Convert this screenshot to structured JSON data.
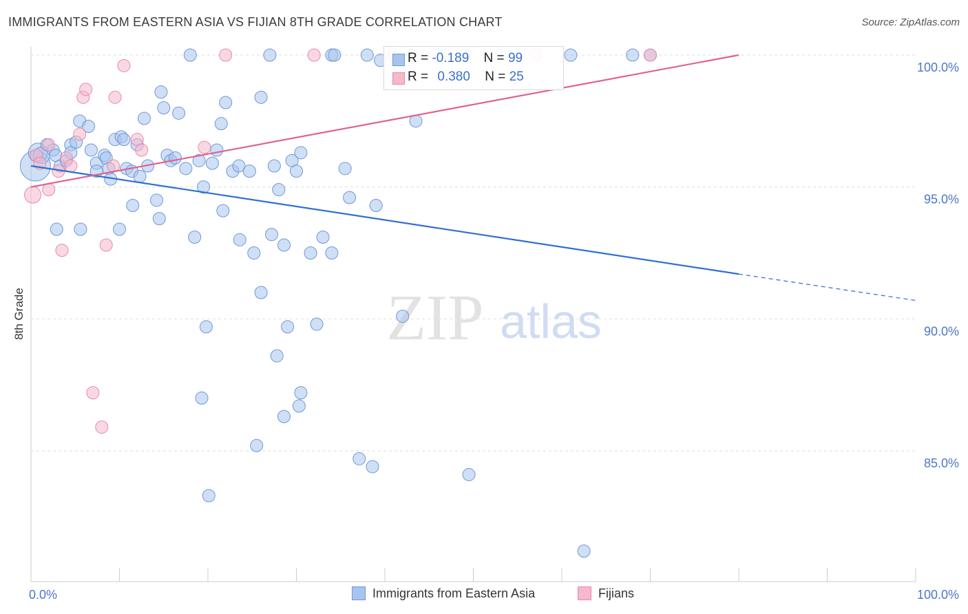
{
  "title": "IMMIGRANTS FROM EASTERN ASIA VS FIJIAN 8TH GRADE CORRELATION CHART",
  "source": "Source: ZipAtlas.com",
  "watermark": {
    "zip": "ZIP",
    "atlas": "atlas"
  },
  "legend": {
    "rows": [
      {
        "r_label": "R =",
        "r_value": "-0.189",
        "n_label": "N =",
        "n_value": "99"
      },
      {
        "r_label": "R =",
        "r_value": "0.380",
        "n_label": "N =",
        "n_value": "25"
      }
    ]
  },
  "bottom_legend": [
    "Immigrants from Eastern Asia",
    "Fijians"
  ],
  "colors": {
    "blue_fill": "#a8c4ee",
    "blue_stroke": "#6f97d8",
    "blue_line": "#2f6fd0",
    "pink_fill": "#f6b8cb",
    "pink_stroke": "#e68aa8",
    "pink_line": "#e0628f",
    "grid": "#dddddd",
    "tick_text": "#4a78c8"
  },
  "chart_data": {
    "type": "scatter",
    "title": "IMMIGRANTS FROM EASTERN ASIA VS FIJIAN 8TH GRADE CORRELATION CHART",
    "xlabel": "",
    "ylabel": "8th Grade",
    "xlim": [
      0,
      100
    ],
    "ylim": [
      80.5,
      101
    ],
    "x_tick_labels": [
      {
        "value": 0,
        "label": "0.0%"
      },
      {
        "value": 100,
        "label": "100.0%"
      }
    ],
    "y_tick_labels": [
      {
        "value": 100,
        "label": "100.0%"
      },
      {
        "value": 95,
        "label": "95.0%"
      },
      {
        "value": 90,
        "label": "90.0%"
      },
      {
        "value": 85,
        "label": "85.0%"
      }
    ],
    "series": [
      {
        "name": "Immigrants from Eastern Asia",
        "color": "#6f97d8",
        "r": -0.189,
        "n": 99,
        "trend": {
          "x0": 0,
          "y0": 95.8,
          "x1": 80,
          "y1": 91.7,
          "dash_to_x": 100,
          "dash_to_y": 90.7
        },
        "points": [
          [
            0.5,
            95.8,
            22
          ],
          [
            0.8,
            96.3,
            14
          ],
          [
            1.2,
            96.2,
            12
          ],
          [
            1.8,
            96.6,
            9
          ],
          [
            2.5,
            96.4,
            9
          ],
          [
            2.8,
            96.2,
            9
          ],
          [
            3.3,
            95.8,
            9
          ],
          [
            4.0,
            96.0,
            9
          ],
          [
            4.5,
            96.6,
            9
          ],
          [
            4.5,
            96.3,
            9
          ],
          [
            5.1,
            96.7,
            9
          ],
          [
            5.5,
            97.5,
            9
          ],
          [
            6.5,
            97.3,
            9
          ],
          [
            6.8,
            96.4,
            9
          ],
          [
            7.4,
            95.9,
            9
          ],
          [
            7.4,
            95.6,
            9
          ],
          [
            8.3,
            96.2,
            9
          ],
          [
            8.5,
            96.1,
            9
          ],
          [
            8.8,
            95.7,
            9
          ],
          [
            9.0,
            95.3,
            9
          ],
          [
            9.5,
            96.8,
            9
          ],
          [
            10.2,
            96.9,
            9
          ],
          [
            10.5,
            96.8,
            9
          ],
          [
            10.8,
            95.7,
            9
          ],
          [
            11.4,
            95.6,
            9
          ],
          [
            12.0,
            96.6,
            9
          ],
          [
            12.3,
            95.4,
            9
          ],
          [
            12.8,
            97.6,
            9
          ],
          [
            13.2,
            95.8,
            9
          ],
          [
            14.2,
            94.5,
            9
          ],
          [
            14.7,
            98.6,
            9
          ],
          [
            15.0,
            98.0,
            9
          ],
          [
            15.4,
            96.2,
            9
          ],
          [
            15.8,
            96.0,
            9
          ],
          [
            16.3,
            96.1,
            9
          ],
          [
            16.7,
            97.8,
            9
          ],
          [
            17.5,
            95.7,
            9
          ],
          [
            19.0,
            96.0,
            9
          ],
          [
            19.5,
            95.0,
            9
          ],
          [
            20.5,
            95.9,
            9
          ],
          [
            21.0,
            96.4,
            9
          ],
          [
            21.5,
            97.4,
            9
          ],
          [
            22.0,
            98.2,
            9
          ],
          [
            22.8,
            95.6,
            9
          ],
          [
            23.5,
            95.8,
            9
          ],
          [
            24.7,
            95.6,
            9
          ],
          [
            26.0,
            98.4,
            9
          ],
          [
            27.5,
            95.8,
            9
          ],
          [
            28.0,
            94.9,
            9
          ],
          [
            29.5,
            96.0,
            9
          ],
          [
            30.5,
            96.3,
            9
          ],
          [
            33.0,
            93.1,
            9
          ],
          [
            34.0,
            92.5,
            9
          ],
          [
            36.0,
            94.6,
            9
          ],
          [
            39.0,
            94.3,
            9
          ],
          [
            42.0,
            90.1,
            9
          ],
          [
            43.5,
            97.5,
            9
          ],
          [
            11.5,
            94.3,
            9
          ],
          [
            2.9,
            93.4,
            9
          ],
          [
            5.6,
            93.4,
            9
          ],
          [
            10.0,
            93.4,
            9
          ],
          [
            18.5,
            93.1,
            9
          ],
          [
            26.0,
            91.0,
            9
          ],
          [
            27.2,
            93.2,
            9
          ],
          [
            28.6,
            92.8,
            9
          ],
          [
            31.6,
            92.5,
            9
          ],
          [
            29.0,
            89.7,
            9
          ],
          [
            32.3,
            89.8,
            9
          ],
          [
            30.0,
            95.6,
            9
          ],
          [
            19.8,
            89.7,
            9
          ],
          [
            21.7,
            94.1,
            9
          ],
          [
            23.6,
            93.0,
            9
          ],
          [
            25.2,
            92.5,
            9
          ],
          [
            27.8,
            88.6,
            9
          ],
          [
            19.3,
            87.0,
            9
          ],
          [
            30.5,
            87.2,
            9
          ],
          [
            30.3,
            86.7,
            9
          ],
          [
            28.6,
            86.3,
            9
          ],
          [
            25.5,
            85.2,
            9
          ],
          [
            37.1,
            84.7,
            9
          ],
          [
            38.6,
            84.4,
            9
          ],
          [
            49.5,
            84.1,
            9
          ],
          [
            20.1,
            83.3,
            9
          ],
          [
            62.5,
            81.2,
            9
          ],
          [
            18.0,
            100.0,
            9
          ],
          [
            27.0,
            100.0,
            9
          ],
          [
            34.0,
            100.0,
            9
          ],
          [
            34.3,
            100.0,
            9
          ],
          [
            38.0,
            100.0,
            9
          ],
          [
            49.0,
            100.0,
            9
          ],
          [
            53.0,
            100.0,
            9
          ],
          [
            61.0,
            100.0,
            9
          ],
          [
            68.0,
            100.0,
            9
          ],
          [
            70.0,
            100.0,
            9
          ],
          [
            41.0,
            100.0,
            9
          ],
          [
            43.0,
            100.0,
            9
          ],
          [
            39.5,
            99.8,
            9
          ],
          [
            14.5,
            93.8,
            9
          ],
          [
            35.5,
            95.7,
            9
          ]
        ]
      },
      {
        "name": "Fijians",
        "color": "#e68aa8",
        "r": 0.38,
        "n": 25,
        "trend": {
          "x0": 0,
          "y0": 95.0,
          "x1": 80,
          "y1": 100.0
        },
        "points": [
          [
            0.2,
            94.7,
            12
          ],
          [
            0.6,
            96.2,
            9
          ],
          [
            1.0,
            95.9,
            9
          ],
          [
            2.0,
            96.6,
            9
          ],
          [
            2.0,
            94.9,
            9
          ],
          [
            3.1,
            95.6,
            9
          ],
          [
            3.5,
            92.6,
            9
          ],
          [
            4.0,
            96.1,
            9
          ],
          [
            4.5,
            95.8,
            9
          ],
          [
            5.5,
            97.0,
            9
          ],
          [
            5.9,
            98.4,
            9
          ],
          [
            6.2,
            98.7,
            9
          ],
          [
            7.0,
            87.2,
            9
          ],
          [
            8.0,
            85.9,
            9
          ],
          [
            8.5,
            92.8,
            9
          ],
          [
            9.5,
            98.4,
            9
          ],
          [
            9.3,
            95.8,
            9
          ],
          [
            10.5,
            99.6,
            9
          ],
          [
            12.0,
            96.8,
            9
          ],
          [
            12.5,
            96.4,
            9
          ],
          [
            19.6,
            96.5,
            9
          ],
          [
            22.0,
            100.0,
            9
          ],
          [
            32.0,
            100.0,
            9
          ],
          [
            57.0,
            100.0,
            9
          ],
          [
            70.0,
            100.0,
            9
          ]
        ]
      }
    ]
  }
}
